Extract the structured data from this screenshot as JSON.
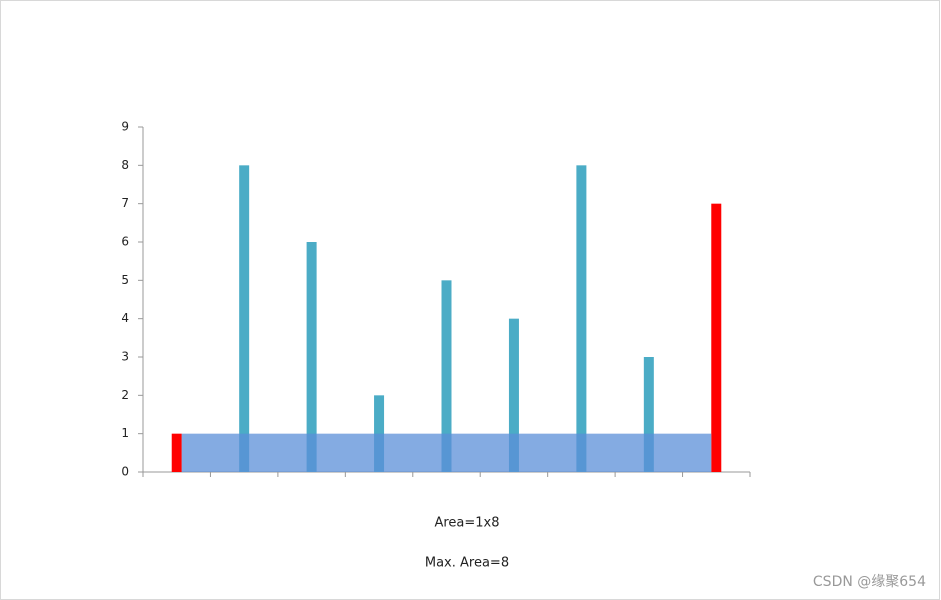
{
  "chart_data": {
    "type": "bar",
    "categories": [
      null,
      null,
      null,
      null,
      null,
      null,
      null,
      null,
      null
    ],
    "values": [
      1,
      8,
      6,
      2,
      5,
      4,
      8,
      3,
      7
    ],
    "colors": [
      "#ff0000",
      "#4bacc6",
      "#4bacc6",
      "#4bacc6",
      "#4bacc6",
      "#4bacc6",
      "#4bacc6",
      "#4bacc6",
      "#ff0000"
    ],
    "highlight_color": "#5b8fd8",
    "ylim": [
      0,
      9
    ],
    "yticks": [
      0,
      1,
      2,
      3,
      4,
      5,
      6,
      7,
      8,
      9
    ],
    "grid": false,
    "annotations": [
      "Area=1x8",
      "Max. Area=8"
    ]
  },
  "watermark": "CSDN @缘聚654"
}
